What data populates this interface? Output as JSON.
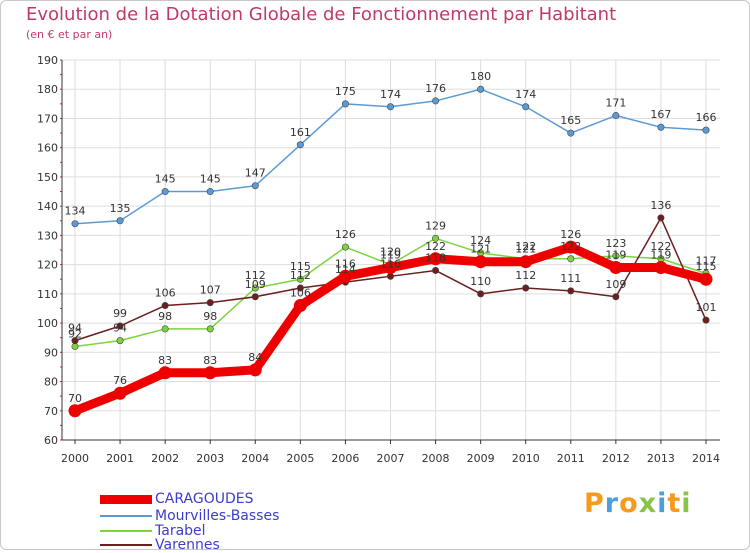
{
  "header": {
    "title": "Evolution de la Dotation Globale de Fonctionnement par Habitant",
    "subtitle": "(en € et par an)"
  },
  "chart_data": {
    "type": "line",
    "title": "Evolution de la Dotation Globale de Fonctionnement par Habitant",
    "subtitle": "(en € et par an)",
    "xlabel": "",
    "ylabel": "",
    "ylim": [
      60,
      190
    ],
    "y_ticks": [
      "60",
      "70",
      "80",
      "90",
      "100",
      "110",
      "120",
      "130",
      "140",
      "150",
      "160",
      "170",
      "180",
      "190"
    ],
    "grid": true,
    "legend_position": "bottom-left",
    "categories": [
      "2000",
      "2001",
      "2002",
      "2003",
      "2004",
      "2005",
      "2006",
      "2007",
      "2008",
      "2009",
      "2010",
      "2011",
      "2012",
      "2013",
      "2014"
    ],
    "series": [
      {
        "name": "CARAGOUDES",
        "color": "#ee0000",
        "values": [
          70,
          76,
          83,
          83,
          84,
          106,
          116,
          119,
          122,
          121,
          121,
          126,
          119,
          119,
          115
        ],
        "labels": [
          "70",
          "76",
          "83",
          "83",
          "84",
          "106",
          "116",
          "119",
          "122",
          "121",
          "121",
          "126",
          "119",
          "119",
          "115"
        ]
      },
      {
        "name": "Mourvilles-Basses",
        "color": "#5b9bd5",
        "values": [
          134,
          135,
          145,
          145,
          147,
          161,
          175,
          174,
          176,
          180,
          174,
          165,
          171,
          167,
          166
        ],
        "labels": [
          "134",
          "135",
          "145",
          "145",
          "147",
          "161",
          "175",
          "174",
          "176",
          "180",
          "174",
          "165",
          "171",
          "167",
          "166"
        ]
      },
      {
        "name": "Tarabel",
        "color": "#7dd33e",
        "values": [
          92,
          94,
          98,
          98,
          112,
          115,
          126,
          120,
          129,
          124,
          122,
          122,
          123,
          122,
          117
        ],
        "labels": [
          "92",
          "94",
          "98",
          "98",
          "112",
          "115",
          "126",
          "120",
          "129",
          "124",
          "122",
          "122",
          "123",
          "122",
          "117"
        ]
      },
      {
        "name": "Varennes",
        "color": "#6b1f1f",
        "values": [
          94,
          99,
          106,
          107,
          109,
          112,
          114,
          116,
          118,
          110,
          112,
          111,
          109,
          136,
          101
        ],
        "labels": [
          "94",
          "99",
          "106",
          "107",
          "109",
          "112",
          "114",
          "116",
          "118",
          "110",
          "112",
          "111",
          "109",
          "136",
          "101"
        ]
      }
    ]
  },
  "brand": {
    "logo_letters": [
      "P",
      "r",
      "o",
      "x",
      "i",
      "t",
      "i"
    ],
    "logo_colors": [
      "#f59a1b",
      "#4a9ee0",
      "#f59a1b",
      "#8bc34a",
      "#4a9ee0",
      "#f59a1b",
      "#8bc34a"
    ]
  }
}
